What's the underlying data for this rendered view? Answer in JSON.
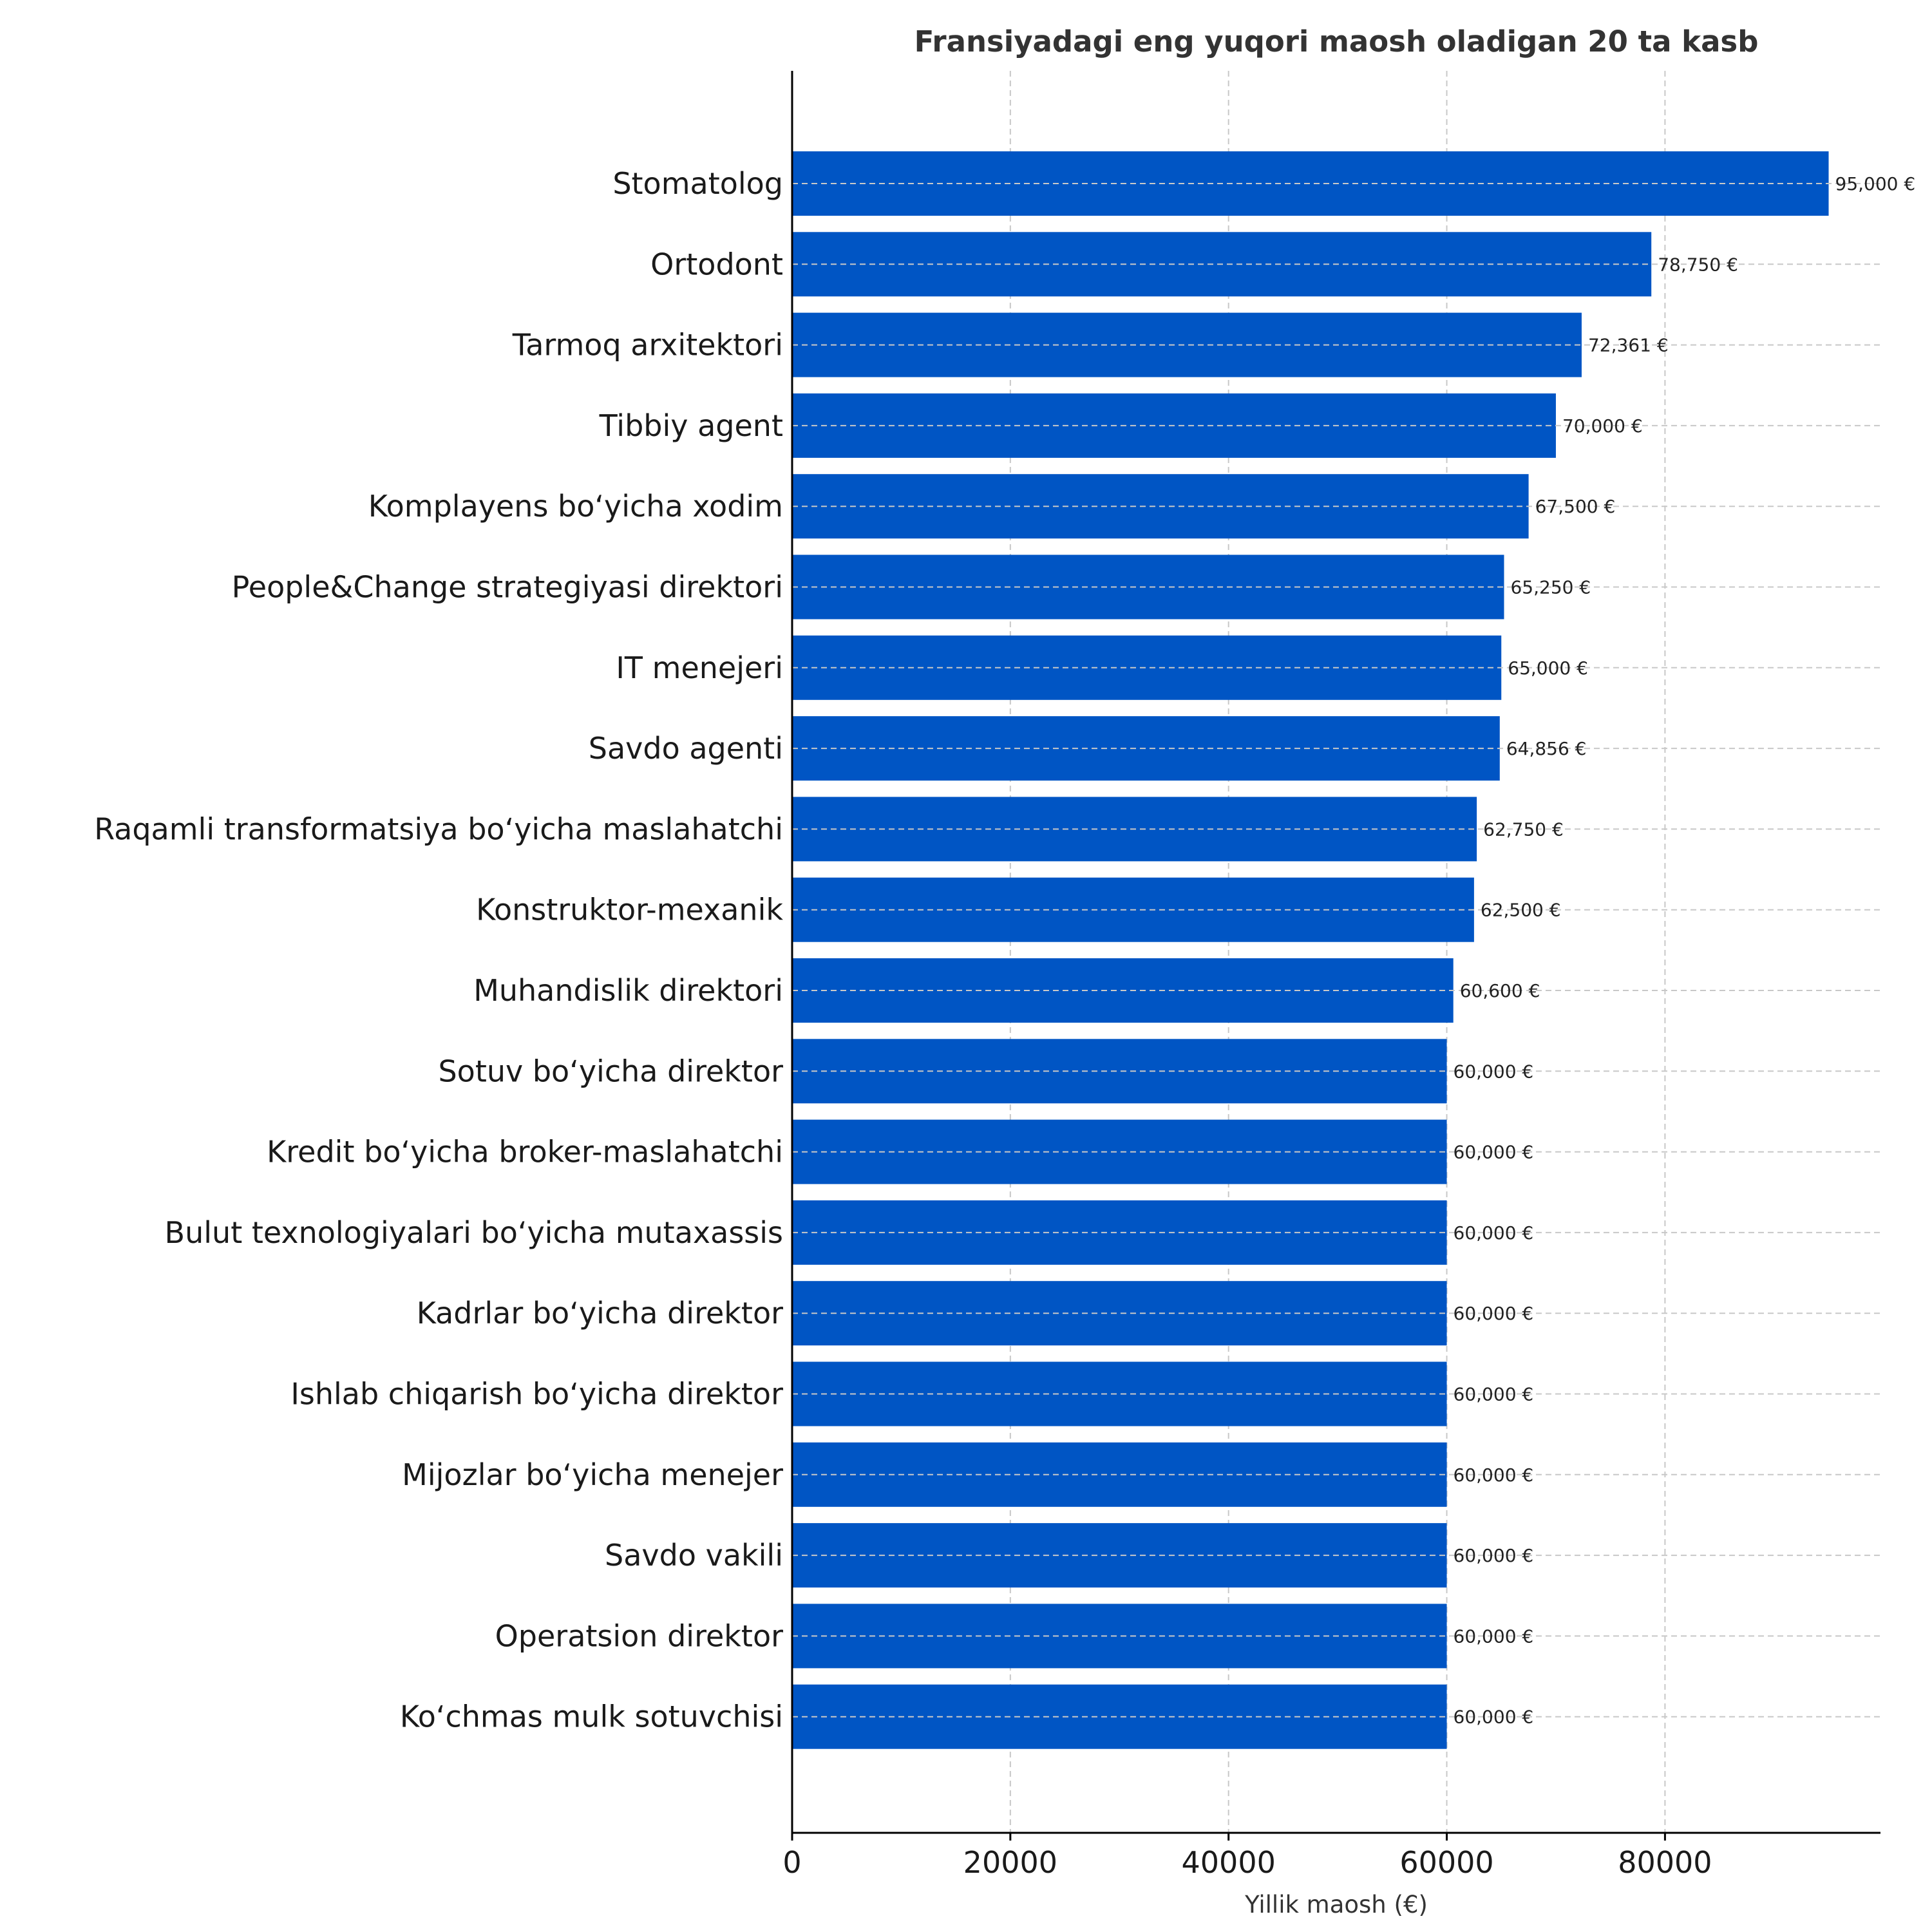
{
  "chart_data": {
    "type": "bar",
    "orientation": "horizontal",
    "title": "Fransiyadagi eng yuqori maosh oladigan 20 ta kasb",
    "xlabel": "Yillik maosh (€)",
    "ylabel": "",
    "xlim": [
      0,
      99750
    ],
    "xticks": [
      0,
      20000,
      40000,
      60000,
      80000
    ],
    "xtick_labels": [
      "0",
      "20000",
      "40000",
      "60000",
      "80000"
    ],
    "grid": true,
    "bar_color": "#0055c4",
    "categories": [
      "Stomatolog",
      "Ortodont",
      "Tarmoq arxitektori",
      "Tibbiy agent",
      "Komplayens boʻyicha xodim",
      "People&Change strategiyasi direktori",
      "IT menejeri",
      "Savdo agenti",
      "Raqamli transformatsiya boʻyicha maslahatchi",
      "Konstruktor-mexanik",
      "Muhandislik direktori",
      "Sotuv boʻyicha direktor",
      "Kredit boʻyicha broker-maslahatchi",
      "Bulut texnologiyalari boʻyicha mutaxassis",
      "Kadrlar boʻyicha direktor",
      "Ishlab chiqarish boʻyicha direktor",
      "Mijozlar boʻyicha menejer",
      "Savdo vakili",
      "Operatsion direktor",
      "Koʻchmas mulk sotuvchisi"
    ],
    "values": [
      95000,
      78750,
      72361,
      70000,
      67500,
      65250,
      65000,
      64856,
      62750,
      62500,
      60600,
      60000,
      60000,
      60000,
      60000,
      60000,
      60000,
      60000,
      60000,
      60000
    ],
    "value_labels": [
      "95,000 €",
      "78,750 €",
      "72,361 €",
      "70,000 €",
      "67,500 €",
      "65,250 €",
      "65,000 €",
      "64,856 €",
      "62,750 €",
      "62,500 €",
      "60,600 €",
      "60,000 €",
      "60,000 €",
      "60,000 €",
      "60,000 €",
      "60,000 €",
      "60,000 €",
      "60,000 €",
      "60,000 €",
      "60,000 €"
    ]
  }
}
